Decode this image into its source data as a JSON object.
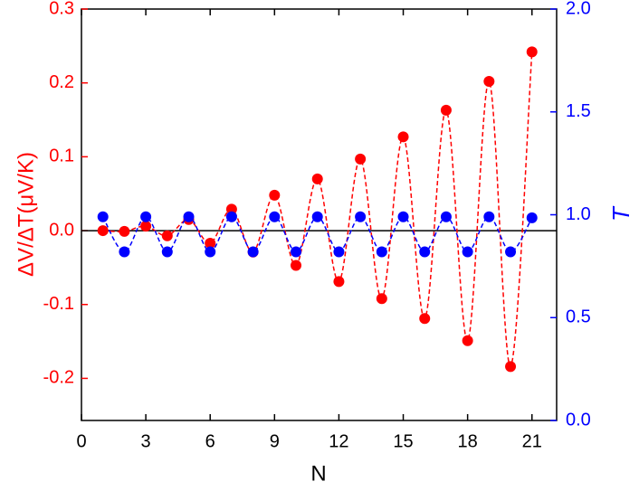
{
  "chart_data": {
    "type": "scatter",
    "xlabel": "N",
    "ylabel": "ΔV/ΔT(μV/K)",
    "y2label": "T",
    "x": [
      1,
      2,
      3,
      4,
      5,
      6,
      7,
      8,
      9,
      10,
      11,
      12,
      13,
      14,
      15,
      16,
      17,
      18,
      19,
      20,
      21
    ],
    "series": [
      {
        "color": "#ff0000",
        "axis": "y",
        "values": [
          0.0,
          -0.001,
          0.006,
          -0.007,
          0.015,
          -0.017,
          0.029,
          -0.029,
          0.048,
          -0.047,
          0.07,
          -0.069,
          0.097,
          -0.092,
          0.127,
          -0.119,
          0.163,
          -0.149,
          0.202,
          -0.184,
          0.242
        ]
      },
      {
        "color": "#0000ff",
        "axis": "y2",
        "values": [
          0.99,
          0.82,
          0.99,
          0.82,
          0.99,
          0.82,
          0.99,
          0.82,
          0.99,
          0.82,
          0.99,
          0.82,
          0.99,
          0.82,
          0.99,
          0.82,
          0.99,
          0.82,
          0.99,
          0.82,
          0.985
        ]
      }
    ],
    "xlim": [
      0,
      22.15
    ],
    "xticks": [
      0,
      3,
      6,
      9,
      12,
      15,
      18,
      21
    ],
    "ylim": [
      -0.257,
      0.3
    ],
    "yticks": [
      -0.2,
      -0.1,
      {
        "value": 0,
        "label": "0.0"
      },
      0.1,
      0.2,
      0.3
    ],
    "y2lim": [
      0,
      2
    ],
    "y2ticks": [
      {
        "value": 0,
        "label": "0.0"
      },
      0.5,
      {
        "value": 1,
        "label": "1.0"
      },
      1.5,
      {
        "value": 2,
        "label": "2.0"
      }
    ],
    "hline": 0,
    "line_style": "dashed"
  }
}
